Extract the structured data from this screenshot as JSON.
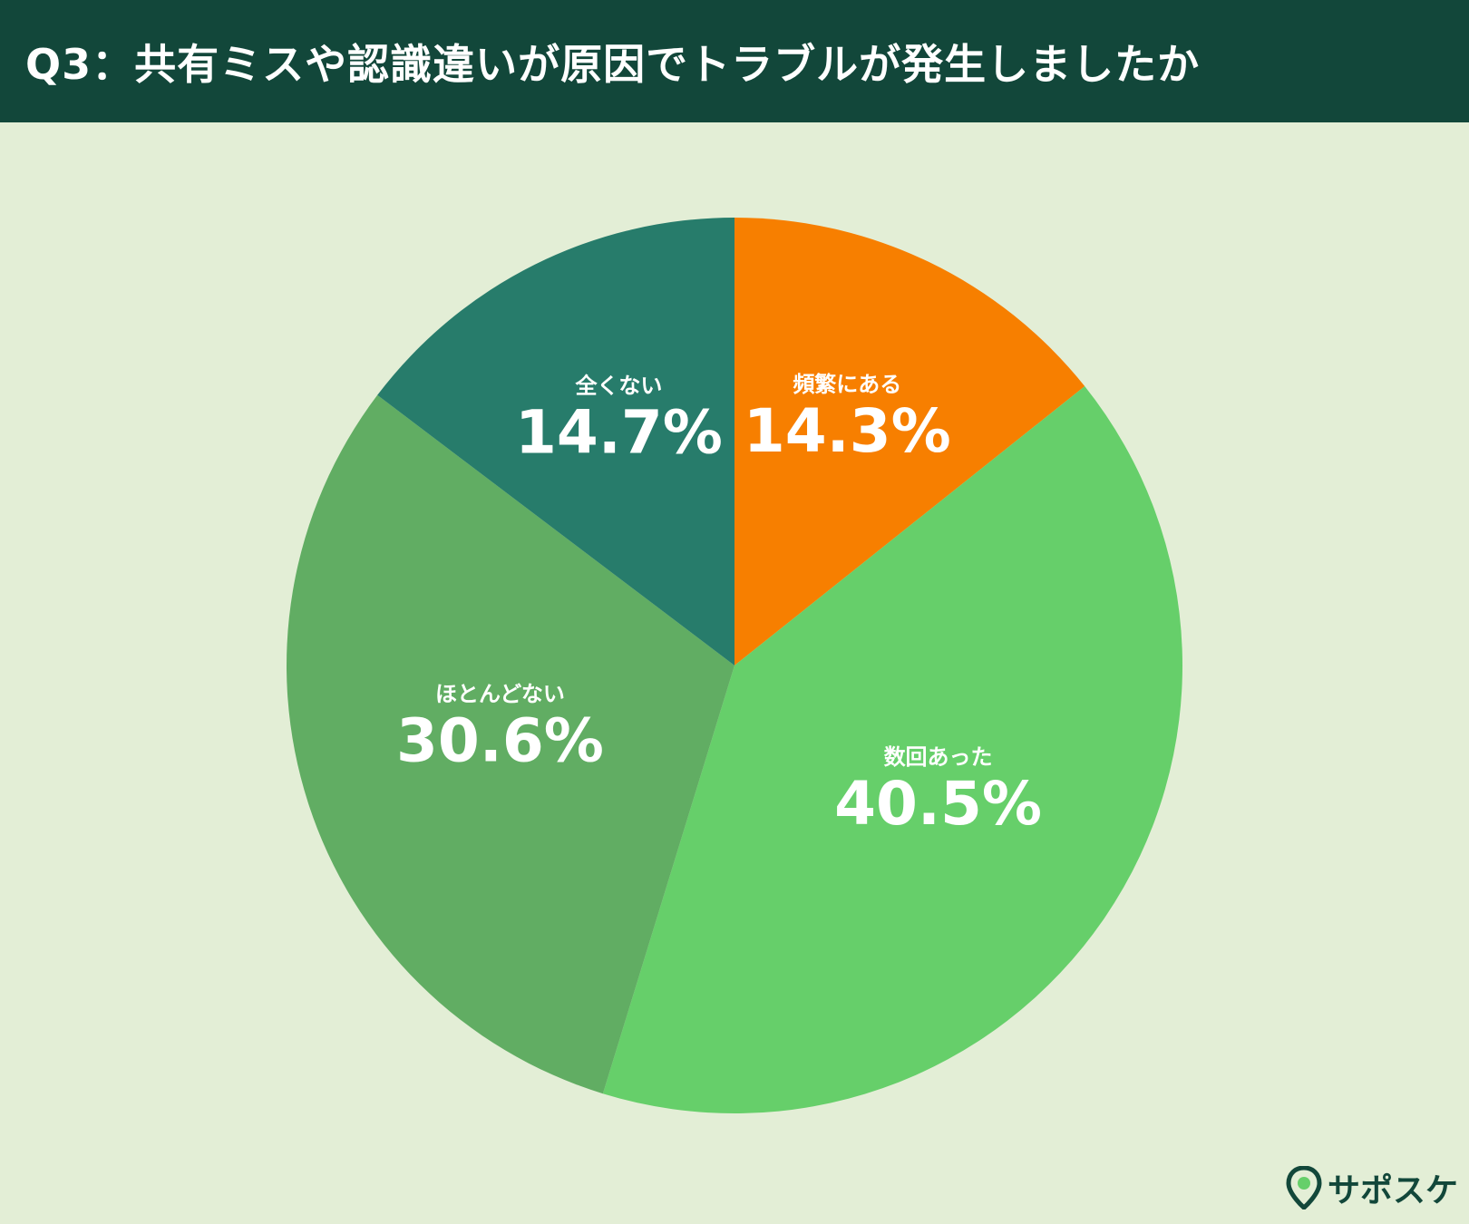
{
  "header": {
    "title": "Q3：共有ミスや認識違いが原因でトラブルが発生しましたか"
  },
  "brand": {
    "name": "サポスケ",
    "icon": "location-pin-icon"
  },
  "colors": {
    "background": "#e3eed6",
    "header": "#12473a",
    "label": "#ffffff"
  },
  "chart_data": {
    "type": "pie",
    "title": "Q3：共有ミスや認識違いが原因でトラブルが発生しましたか",
    "start": "12 o'clock, clockwise",
    "slices": [
      {
        "label": "頻繁にある",
        "value": 14.3,
        "display": "14.3%",
        "color": "#f77f00"
      },
      {
        "label": "数回あった",
        "value": 40.5,
        "display": "40.5%",
        "color": "#66cf6a"
      },
      {
        "label": "ほとんどない",
        "value": 30.6,
        "display": "30.6%",
        "color": "#61ad63"
      },
      {
        "label": "全くない",
        "value": 14.7,
        "display": "14.7%",
        "color": "#277c6b"
      }
    ]
  }
}
